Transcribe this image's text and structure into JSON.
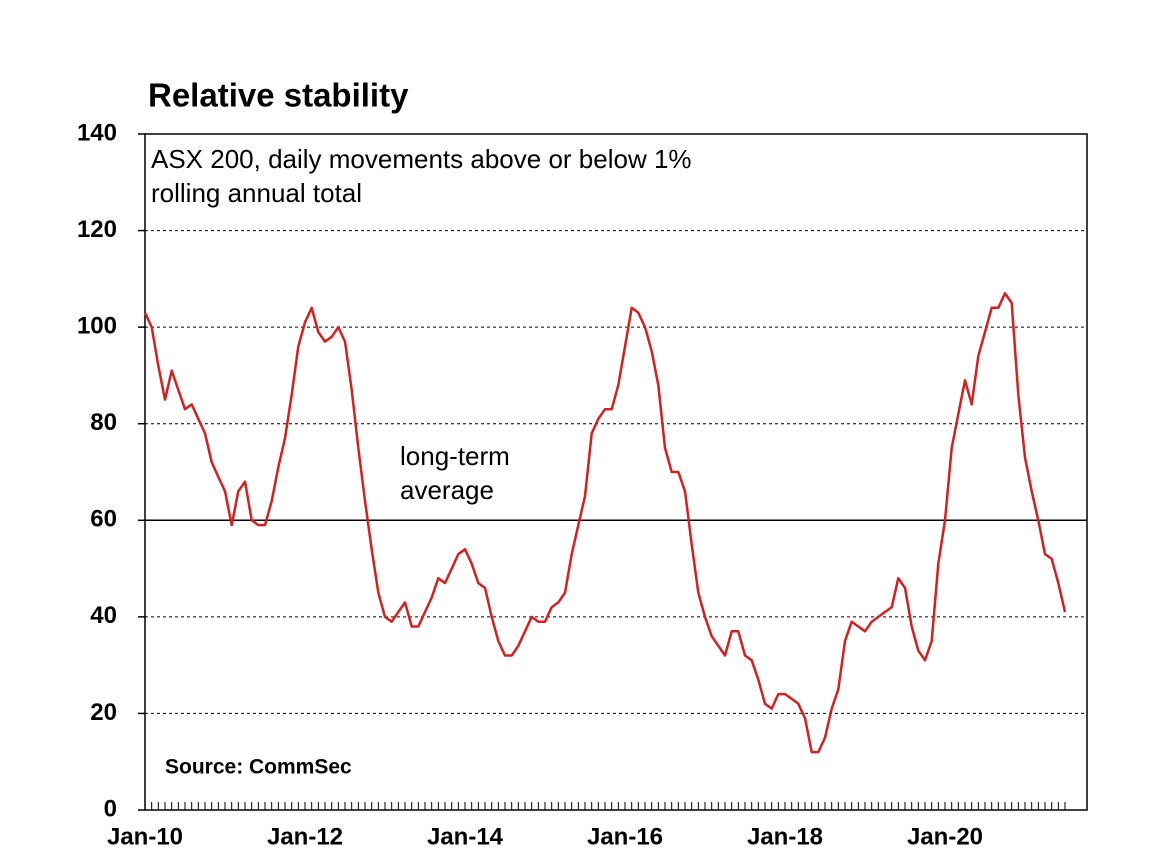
{
  "chart_data": {
    "type": "line",
    "title": "Relative stability",
    "subtitle_lines": [
      "ASX 200, daily movements above or below 1%",
      "rolling annual total"
    ],
    "source": "Source: CommSec",
    "reference_line": {
      "value": 60,
      "label_lines": [
        "long-term",
        "average"
      ]
    },
    "categories": [
      "Jan-10",
      null,
      null,
      null,
      null,
      null,
      null,
      null,
      null,
      null,
      null,
      null,
      null,
      null,
      null,
      null,
      null,
      null,
      null,
      null,
      null,
      null,
      null,
      null,
      "Jan-12",
      null,
      null,
      null,
      null,
      null,
      null,
      null,
      null,
      null,
      null,
      null,
      null,
      null,
      null,
      null,
      null,
      null,
      null,
      null,
      null,
      null,
      null,
      null,
      "Jan-14",
      null,
      null,
      null,
      null,
      null,
      null,
      null,
      null,
      null,
      null,
      null,
      null,
      null,
      null,
      null,
      null,
      null,
      null,
      null,
      null,
      null,
      null,
      null,
      "Jan-16",
      null,
      null,
      null,
      null,
      null,
      null,
      null,
      null,
      null,
      null,
      null,
      null,
      null,
      null,
      null,
      null,
      null,
      null,
      null,
      null,
      null,
      null,
      null,
      "Jan-18",
      null,
      null,
      null,
      null,
      null,
      null,
      null,
      null,
      null,
      null,
      null,
      null,
      null,
      null,
      null,
      null,
      null,
      null,
      null,
      null,
      null,
      null,
      null,
      "Jan-20",
      null,
      null,
      null,
      null,
      null,
      null,
      null,
      null,
      null,
      null,
      null,
      null,
      null,
      null,
      null,
      null,
      null,
      null
    ],
    "series": [
      {
        "name": "ASX 200",
        "color": "#d42020",
        "values": [
          103,
          100,
          92,
          85,
          91,
          87,
          83,
          84,
          81,
          78,
          72,
          69,
          66,
          59,
          66,
          68,
          60,
          59,
          59,
          64,
          71,
          77,
          86,
          96,
          101,
          104,
          99,
          97,
          98,
          100,
          97,
          87,
          75,
          64,
          54,
          45,
          40,
          39,
          41,
          43,
          38,
          38,
          41,
          44,
          48,
          47,
          50,
          53,
          54,
          51,
          47,
          46,
          40,
          35,
          32,
          32,
          34,
          37,
          40,
          39,
          39,
          42,
          43,
          45,
          53,
          59,
          65,
          78,
          81,
          83,
          83,
          88,
          96,
          104,
          103,
          100,
          95,
          88,
          75,
          70,
          70,
          66,
          55,
          45,
          40,
          36,
          34,
          32,
          37,
          37,
          32,
          31,
          27,
          22,
          21,
          24,
          24,
          23,
          22,
          19,
          12,
          12,
          15,
          21,
          25,
          35,
          39,
          38,
          37,
          39,
          40,
          41,
          42,
          48,
          46,
          38,
          33,
          31,
          35,
          51,
          60,
          75,
          82,
          89,
          84,
          94,
          99,
          104,
          104,
          107,
          105,
          86,
          73,
          66,
          60,
          53,
          52,
          47,
          41
        ]
      }
    ],
    "ylim": [
      0,
      140
    ],
    "yticks": [
      0,
      20,
      40,
      60,
      80,
      100,
      120,
      140
    ],
    "grid": true
  }
}
